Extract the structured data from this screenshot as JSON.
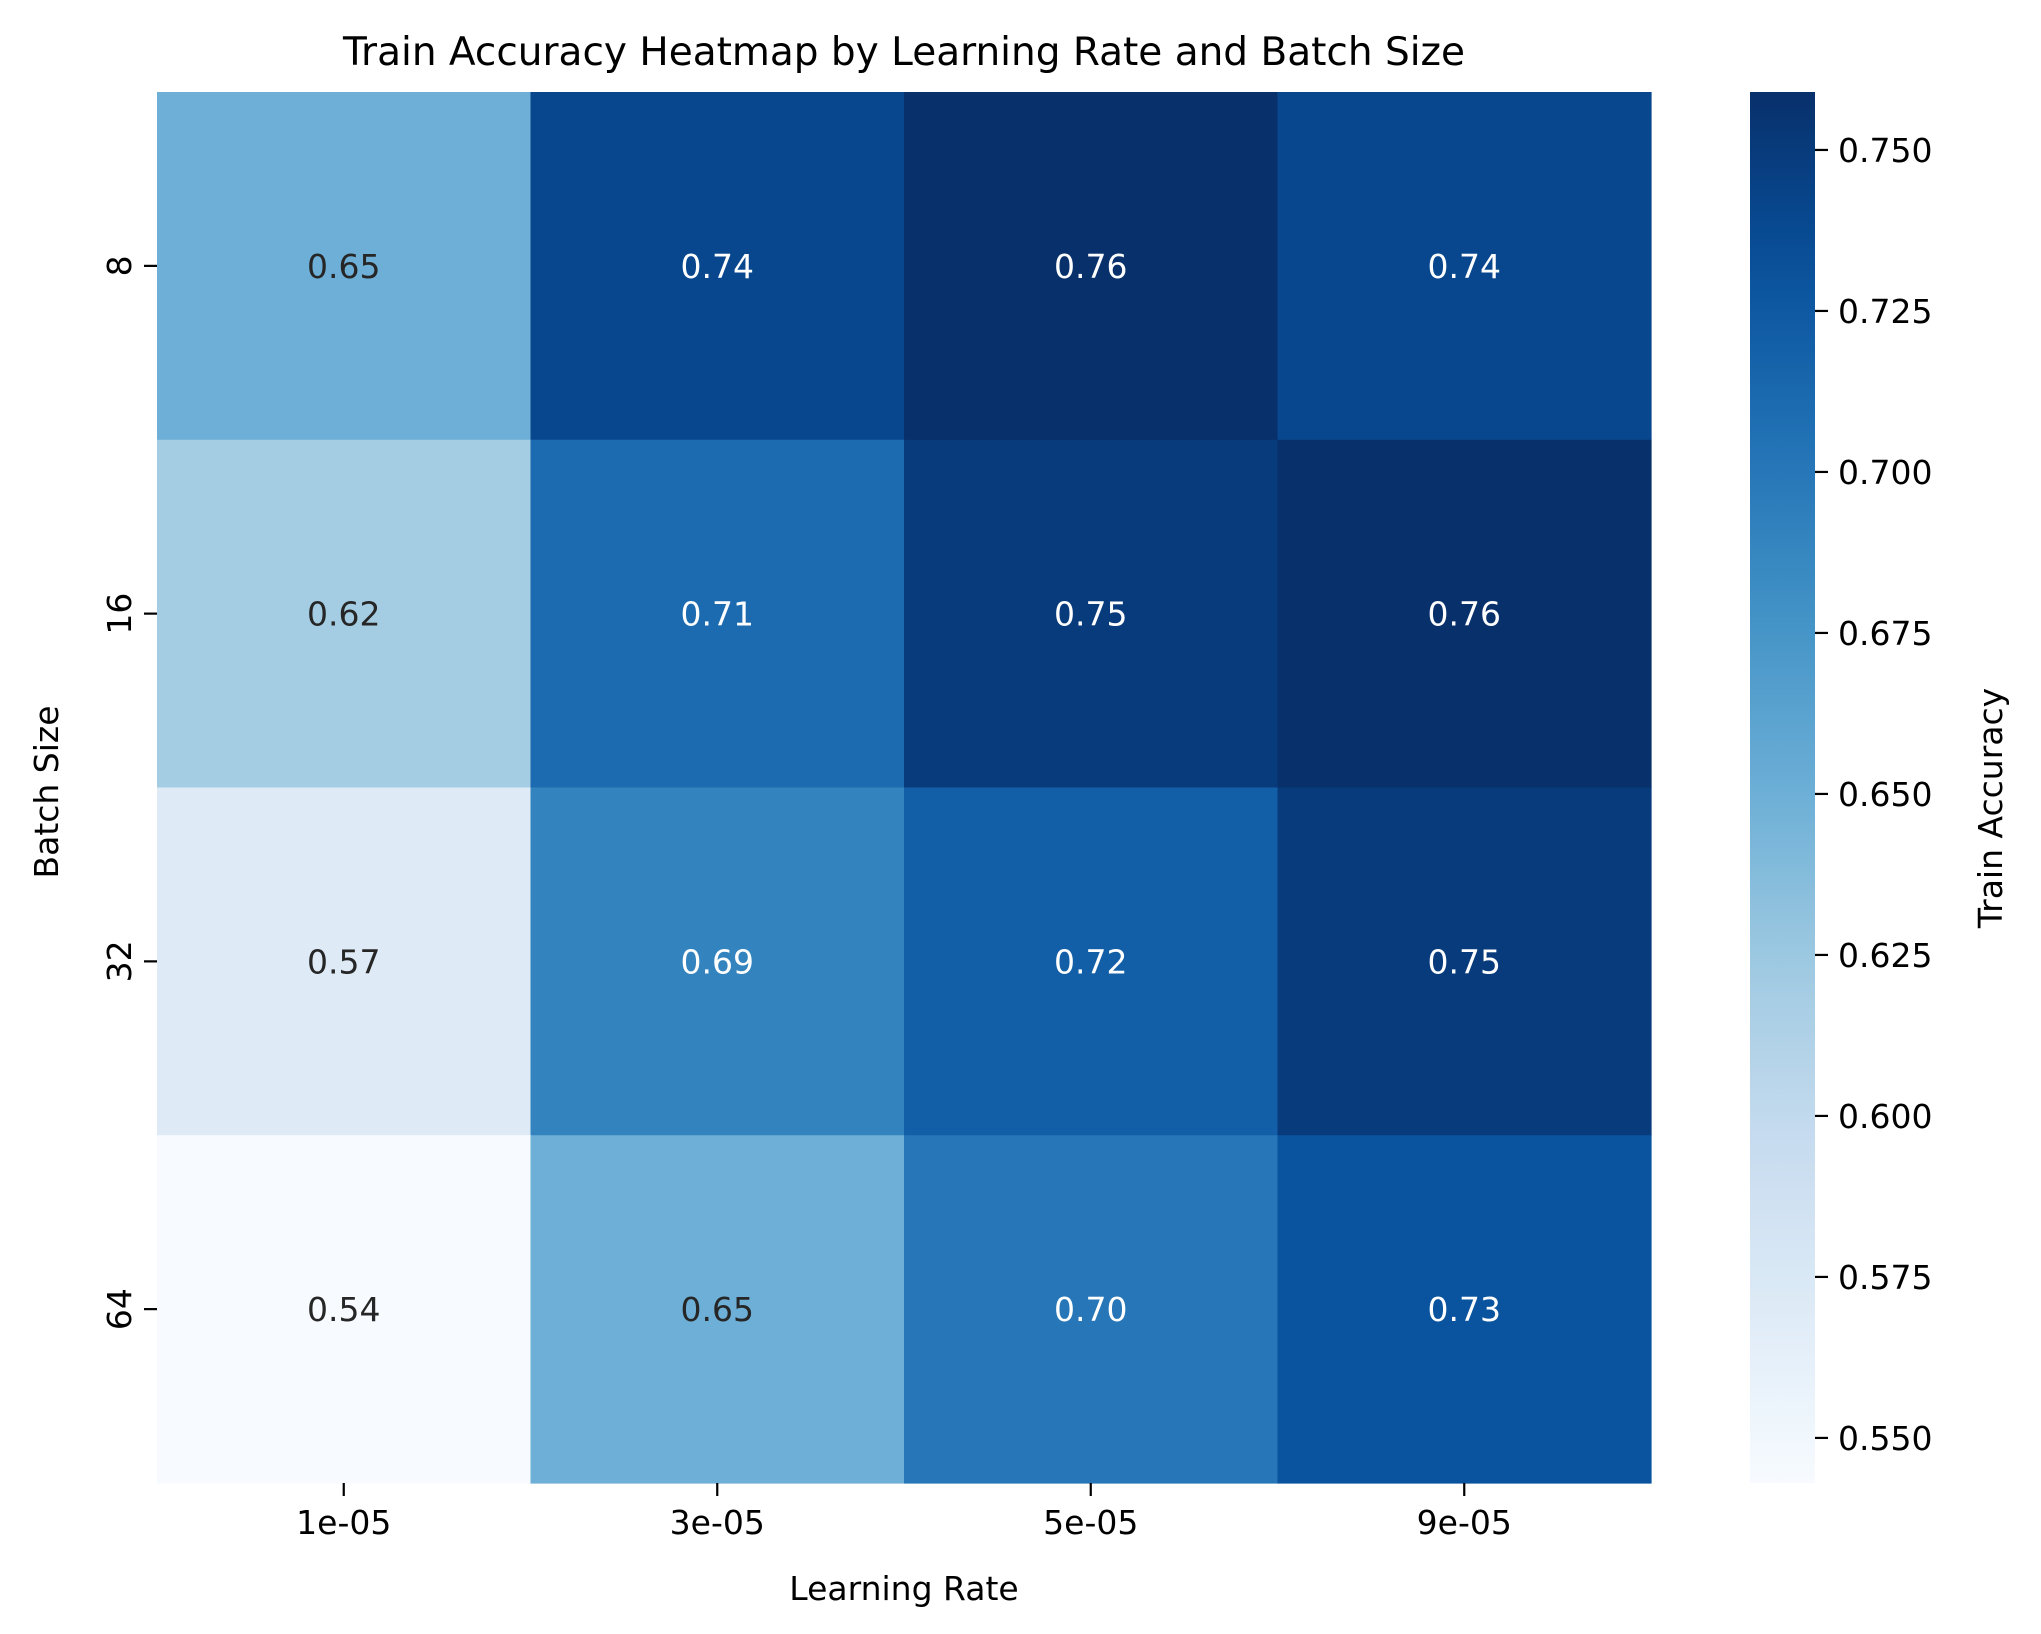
{
  "chart_data": {
    "type": "heatmap",
    "title": "Train Accuracy Heatmap by Learning Rate and Batch Size",
    "xlabel": "Learning Rate",
    "ylabel": "Batch Size",
    "x_categories": [
      "1e-05",
      "3e-05",
      "5e-05",
      "9e-05"
    ],
    "y_categories": [
      "8",
      "16",
      "32",
      "64"
    ],
    "values": [
      [
        0.65,
        0.74,
        0.76,
        0.74
      ],
      [
        0.62,
        0.71,
        0.75,
        0.76
      ],
      [
        0.57,
        0.69,
        0.72,
        0.75
      ],
      [
        0.54,
        0.65,
        0.7,
        0.73
      ]
    ],
    "cell_labels": [
      [
        "0.65",
        "0.74",
        "0.76",
        "0.74"
      ],
      [
        "0.62",
        "0.71",
        "0.75",
        "0.76"
      ],
      [
        "0.57",
        "0.69",
        "0.72",
        "0.75"
      ],
      [
        "0.54",
        "0.65",
        "0.70",
        "0.73"
      ]
    ],
    "colorbar": {
      "label": "Train Accuracy",
      "range": [
        0.543,
        0.759
      ],
      "ticks": [
        0.55,
        0.575,
        0.6,
        0.625,
        0.65,
        0.675,
        0.7,
        0.725,
        0.75
      ],
      "tick_labels": [
        "0.550",
        "0.575",
        "0.600",
        "0.625",
        "0.650",
        "0.675",
        "0.700",
        "0.725",
        "0.750"
      ]
    },
    "colormap": "Blues",
    "colormap_stops": [
      "#f7fbff",
      "#deebf7",
      "#c6dbef",
      "#9ecae1",
      "#6baed6",
      "#4292c6",
      "#2171b5",
      "#08519c",
      "#08306b"
    ],
    "grid": false,
    "legend": "colorbar-right"
  }
}
